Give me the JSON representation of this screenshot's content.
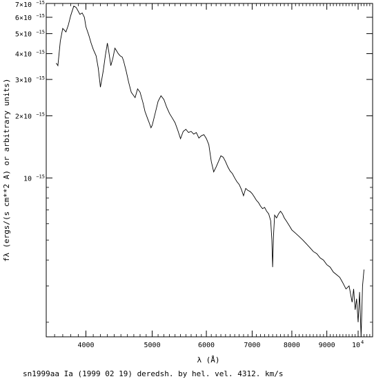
{
  "chart_data": {
    "type": "line",
    "title": "",
    "caption": "sn1999aa Ia (1999 02 19) deredsh. by hel. vel.  4312. km/s",
    "xlabel": "λ (Å)",
    "ylabel": "fλ (ergs/(s cm**2 A) or arbitrary units)",
    "x_scale": "log",
    "y_scale": "log",
    "xlim": [
      3500,
      10500
    ],
    "ylim": [
      1.7e-16,
      7e-15
    ],
    "grid": false,
    "x_ticks": [
      {
        "value": 4000,
        "label": "4000"
      },
      {
        "value": 5000,
        "label": "5000"
      },
      {
        "value": 6000,
        "label": "6000"
      },
      {
        "value": 7000,
        "label": "7000"
      },
      {
        "value": 8000,
        "label": "8000"
      },
      {
        "value": 9000,
        "label": "9000"
      },
      {
        "value": 10000,
        "label": "10",
        "exponent": "4"
      }
    ],
    "y_ticks": [
      {
        "value": 7e-15,
        "label": "7×10",
        "exponent": "−15"
      },
      {
        "value": 6e-15,
        "label": "6×10",
        "exponent": "−15"
      },
      {
        "value": 5e-15,
        "label": "5×10",
        "exponent": "−15"
      },
      {
        "value": 4e-15,
        "label": "4×10",
        "exponent": "−15"
      },
      {
        "value": 3e-15,
        "label": "3×10",
        "exponent": "−15"
      },
      {
        "value": 2e-15,
        "label": "2×10",
        "exponent": "−15"
      },
      {
        "value": 1e-15,
        "label": "10",
        "exponent": "−15"
      }
    ],
    "series": [
      {
        "x": [
          3620,
          3640,
          3670,
          3700,
          3740,
          3770,
          3800,
          3840,
          3870,
          3900,
          3920,
          3950,
          3980,
          4000,
          4040,
          4070,
          4100,
          4140,
          4170,
          4200,
          4240,
          4270,
          4300,
          4320,
          4350,
          4380,
          4410,
          4430,
          4460,
          4490,
          4520,
          4540,
          4580,
          4620,
          4660,
          4700,
          4720,
          4760,
          4800,
          4850,
          4880,
          4920,
          4950,
          4980,
          5000,
          5050,
          5100,
          5150,
          5200,
          5250,
          5300,
          5350,
          5400,
          5450,
          5500,
          5550,
          5600,
          5650,
          5700,
          5750,
          5800,
          5850,
          5900,
          5950,
          6000,
          6050,
          6100,
          6150,
          6200,
          6250,
          6300,
          6350,
          6400,
          6450,
          6500,
          6550,
          6600,
          6650,
          6700,
          6750,
          6800,
          6850,
          6900,
          6950,
          7000,
          7050,
          7100,
          7150,
          7200,
          7250,
          7300,
          7350,
          7400,
          7450,
          7480,
          7500,
          7520,
          7550,
          7600,
          7650,
          7700,
          7750,
          7800,
          7850,
          7900,
          7950,
          8000,
          8100,
          8200,
          8300,
          8400,
          8500,
          8600,
          8700,
          8800,
          8900,
          9000,
          9100,
          9200,
          9300,
          9400,
          9500,
          9600,
          9700,
          9800,
          9850,
          9900,
          9950,
          10000,
          10050,
          10100,
          10150,
          10200
        ],
        "y": [
          3.6e-15,
          3.5e-15,
          4.6e-15,
          5.3e-15,
          5.1e-15,
          5.5e-15,
          6.1e-15,
          6.8e-15,
          6.7e-15,
          6.4e-15,
          6.2e-15,
          6.3e-15,
          6e-15,
          5.4e-15,
          4.9e-15,
          4.5e-15,
          4.2e-15,
          3.9e-15,
          3.4e-15,
          2.75e-15,
          3.3e-15,
          3.9e-15,
          4.5e-15,
          4.1e-15,
          3.5e-15,
          3.8e-15,
          4.25e-15,
          4.15e-15,
          4e-15,
          3.9e-15,
          3.85e-15,
          3.7e-15,
          3.3e-15,
          2.9e-15,
          2.6e-15,
          2.5e-15,
          2.45e-15,
          2.7e-15,
          2.6e-15,
          2.3e-15,
          2.1e-15,
          1.95e-15,
          1.85e-15,
          1.75e-15,
          1.8e-15,
          2.05e-15,
          2.35e-15,
          2.5e-15,
          2.4e-15,
          2.2e-15,
          2.05e-15,
          1.95e-15,
          1.85e-15,
          1.7e-15,
          1.55e-15,
          1.68e-15,
          1.72e-15,
          1.66e-15,
          1.68e-15,
          1.63e-15,
          1.66e-15,
          1.56e-15,
          1.6e-15,
          1.62e-15,
          1.55e-15,
          1.45e-15,
          1.2e-15,
          1.07e-15,
          1.13e-15,
          1.2e-15,
          1.28e-15,
          1.26e-15,
          1.2e-15,
          1.13e-15,
          1.08e-15,
          1.05e-15,
          1e-15,
          9.6e-16,
          9.3e-16,
          8.8e-16,
          8.2e-16,
          8.9e-16,
          8.7e-16,
          8.6e-16,
          8.4e-16,
          8.1e-16,
          7.8e-16,
          7.6e-16,
          7.3e-16,
          7.1e-16,
          7.2e-16,
          6.9e-16,
          6.7e-16,
          6.2e-16,
          5e-16,
          3.7e-16,
          5.2e-16,
          6.6e-16,
          6.4e-16,
          6.7e-16,
          6.9e-16,
          6.7e-16,
          6.4e-16,
          6.2e-16,
          6e-16,
          5.8e-16,
          5.6e-16,
          5.4e-16,
          5.2e-16,
          5e-16,
          4.8e-16,
          4.6e-16,
          4.4e-16,
          4.3e-16,
          4.1e-16,
          4e-16,
          3.8e-16,
          3.7e-16,
          3.5e-16,
          3.4e-16,
          3.3e-16,
          3.1e-16,
          2.9e-16,
          3e-16,
          2.5e-16,
          2.9e-16,
          2.3e-16,
          2.6e-16,
          2e-16,
          2.8e-16,
          1.7e-16,
          3e-16,
          3.6e-16
        ]
      }
    ]
  }
}
